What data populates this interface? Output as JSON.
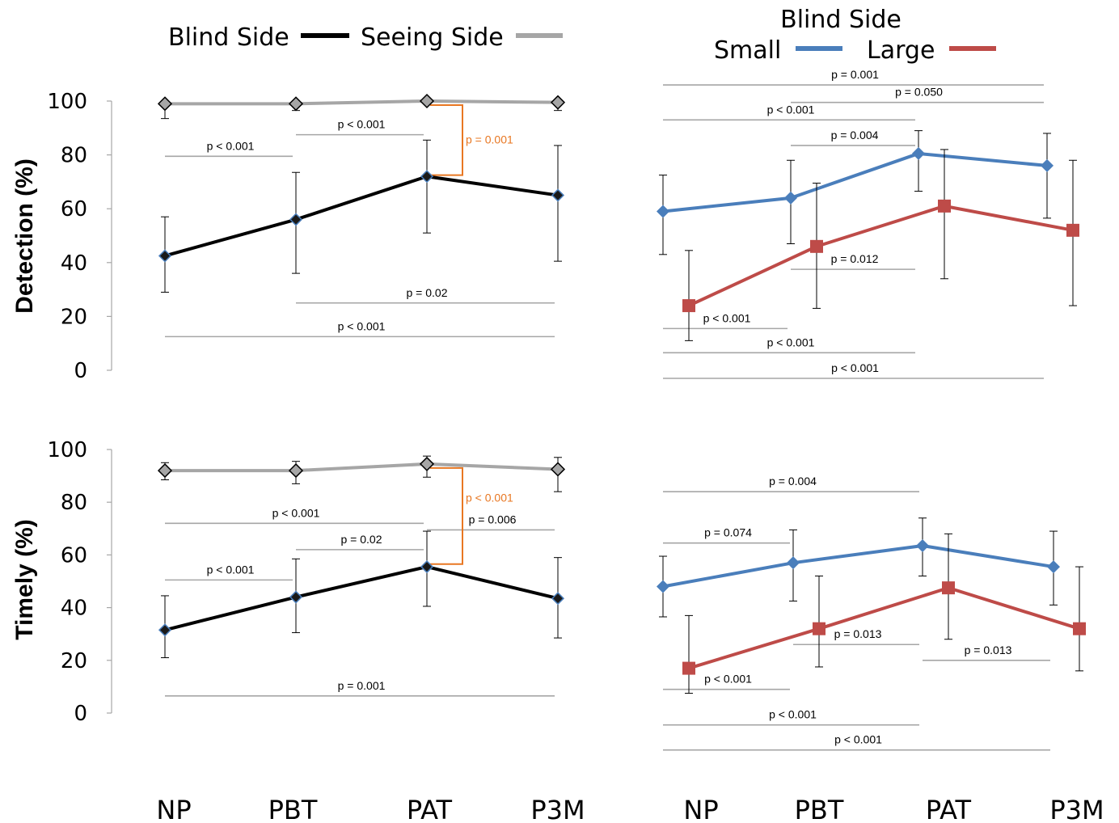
{
  "legend_left": {
    "items": [
      {
        "label": "Blind Side",
        "color": "#000000"
      },
      {
        "label": "Seeing Side",
        "color": "#a6a6a6"
      }
    ]
  },
  "legend_right": {
    "title": "Blind Side",
    "items": [
      {
        "label": "Small",
        "color": "#4a7ebb"
      },
      {
        "label": "Large",
        "color": "#be4b48"
      }
    ]
  },
  "y_titles": [
    "Detection (%)",
    "Timely (%)"
  ],
  "y_ticks": [
    "0",
    "20",
    "40",
    "60",
    "80",
    "100"
  ],
  "x_categories": [
    "NP",
    "PBT",
    "PAT",
    "P3M"
  ],
  "colors": {
    "blind": "#000000",
    "seeing": "#a6a6a6",
    "small": "#4a7ebb",
    "large": "#be4b48",
    "bracket": "#e87722",
    "sigline": "#a6a6a6"
  },
  "chart_data": [
    {
      "type": "line",
      "ylabel": "Detection (%)",
      "categories": [
        "NP",
        "PBT",
        "PAT",
        "P3M"
      ],
      "ylim": [
        0,
        100
      ],
      "series": [
        {
          "name": "Blind Side",
          "values": [
            42.5,
            56,
            72,
            65
          ],
          "err_low": [
            29,
            36,
            51,
            40.5
          ],
          "err_high": [
            57,
            73.5,
            85.5,
            83.5
          ]
        },
        {
          "name": "Seeing Side",
          "values": [
            99,
            99,
            100,
            99.5
          ],
          "err_low": [
            93.5,
            96.5,
            100,
            96.5
          ],
          "err_high": [
            100,
            100,
            100,
            100
          ]
        }
      ],
      "annotations": [
        {
          "text": "p < 0.001",
          "from": "NP",
          "to": "PBT",
          "y": 79.5
        },
        {
          "text": "p < 0.001",
          "from": "PBT",
          "to": "PAT",
          "y": 87.5
        },
        {
          "text": "p = 0.02",
          "from": "PBT",
          "to": "P3M",
          "y": 25
        },
        {
          "text": "p < 0.001",
          "from": "NP",
          "to": "P3M",
          "y": 12.5
        },
        {
          "text": "p = 0.001",
          "type": "bracket",
          "at": "PAT",
          "y1": 98.5,
          "y2": 72.5
        }
      ]
    },
    {
      "type": "line",
      "ylabel": "Detection (%)",
      "categories": [
        "NP",
        "PBT",
        "PAT",
        "P3M"
      ],
      "ylim": [
        0,
        100
      ],
      "series": [
        {
          "name": "Small",
          "values": [
            59,
            64,
            80.5,
            76
          ],
          "err_low": [
            43,
            47,
            66.5,
            56.5
          ],
          "err_high": [
            72.5,
            78,
            89,
            88
          ]
        },
        {
          "name": "Large",
          "values": [
            24,
            46,
            61,
            52
          ],
          "err_low": [
            11,
            23,
            34,
            24
          ],
          "err_high": [
            44.5,
            69.5,
            82,
            78
          ]
        }
      ],
      "annotations": [
        {
          "text": "p = 0.001",
          "from": "NP",
          "to": "P3M",
          "y": 106
        },
        {
          "text": "p = 0.050",
          "from": "PBT",
          "to": "P3M",
          "y": 99.5
        },
        {
          "text": "p < 0.001",
          "from": "NP",
          "to": "PAT",
          "y": 93
        },
        {
          "text": "p = 0.004",
          "from": "PBT",
          "to": "PAT",
          "y": 83.5
        },
        {
          "text": "p = 0.012",
          "from": "PBT",
          "to": "PAT",
          "y": 37.5
        },
        {
          "text": "p < 0.001",
          "from": "NP",
          "to": "PBT",
          "y": 15.5
        },
        {
          "text": "p < 0.001",
          "from": "NP",
          "to": "PAT",
          "y": 6.5
        },
        {
          "text": "p < 0.001",
          "from": "NP",
          "to": "P3M",
          "y": -3
        }
      ]
    },
    {
      "type": "line",
      "ylabel": "Timely (%)",
      "categories": [
        "NP",
        "PBT",
        "PAT",
        "P3M"
      ],
      "ylim": [
        0,
        100
      ],
      "series": [
        {
          "name": "Blind Side",
          "values": [
            31.5,
            44,
            55.5,
            43.5
          ],
          "err_low": [
            21,
            30.5,
            40.5,
            28.5
          ],
          "err_high": [
            44.5,
            58.5,
            69,
            59
          ]
        },
        {
          "name": "Seeing Side",
          "values": [
            92,
            92,
            94.5,
            92.5
          ],
          "err_low": [
            88.5,
            87,
            89.5,
            84
          ],
          "err_high": [
            95,
            95.5,
            97.5,
            97
          ]
        }
      ],
      "annotations": [
        {
          "text": "p < 0.001",
          "from": "NP",
          "to": "PAT",
          "y": 72
        },
        {
          "text": "p = 0.02",
          "from": "PBT",
          "to": "PAT",
          "y": 62
        },
        {
          "text": "p = 0.006",
          "from": "PAT",
          "to": "P3M",
          "y": 69.5
        },
        {
          "text": "p < 0.001",
          "from": "NP",
          "to": "PBT",
          "y": 50.5
        },
        {
          "text": "p = 0.001",
          "from": "NP",
          "to": "P3M",
          "y": 6.5
        },
        {
          "text": "p < 0.001",
          "type": "bracket",
          "at": "PAT",
          "y1": 93,
          "y2": 56.5
        }
      ]
    },
    {
      "type": "line",
      "ylabel": "Timely (%)",
      "categories": [
        "NP",
        "PBT",
        "PAT",
        "P3M"
      ],
      "ylim": [
        0,
        100
      ],
      "series": [
        {
          "name": "Small",
          "values": [
            48,
            57,
            63.5,
            55.5
          ],
          "err_low": [
            36.5,
            42.5,
            52,
            41
          ],
          "err_high": [
            59.5,
            69.5,
            74,
            69
          ]
        },
        {
          "name": "Large",
          "values": [
            17,
            32,
            47.5,
            32
          ],
          "err_low": [
            7.5,
            17.5,
            28,
            16
          ],
          "err_high": [
            37,
            52,
            68,
            55.5
          ]
        }
      ],
      "annotations": [
        {
          "text": "p = 0.004",
          "from": "NP",
          "to": "PAT",
          "y": 84
        },
        {
          "text": "p = 0.074",
          "from": "NP",
          "to": "PBT",
          "y": 64.5
        },
        {
          "text": "p = 0.013",
          "from": "PBT",
          "to": "PAT",
          "y": 26
        },
        {
          "text": "p = 0.013",
          "from": "PAT",
          "to": "P3M",
          "y": 20
        },
        {
          "text": "p < 0.001",
          "from": "NP",
          "to": "PBT",
          "y": 9
        },
        {
          "text": "p < 0.001",
          "from": "NP",
          "to": "PAT",
          "y": -4.5
        },
        {
          "text": "p < 0.001",
          "from": "NP",
          "to": "P3M",
          "y": -14
        }
      ]
    }
  ]
}
